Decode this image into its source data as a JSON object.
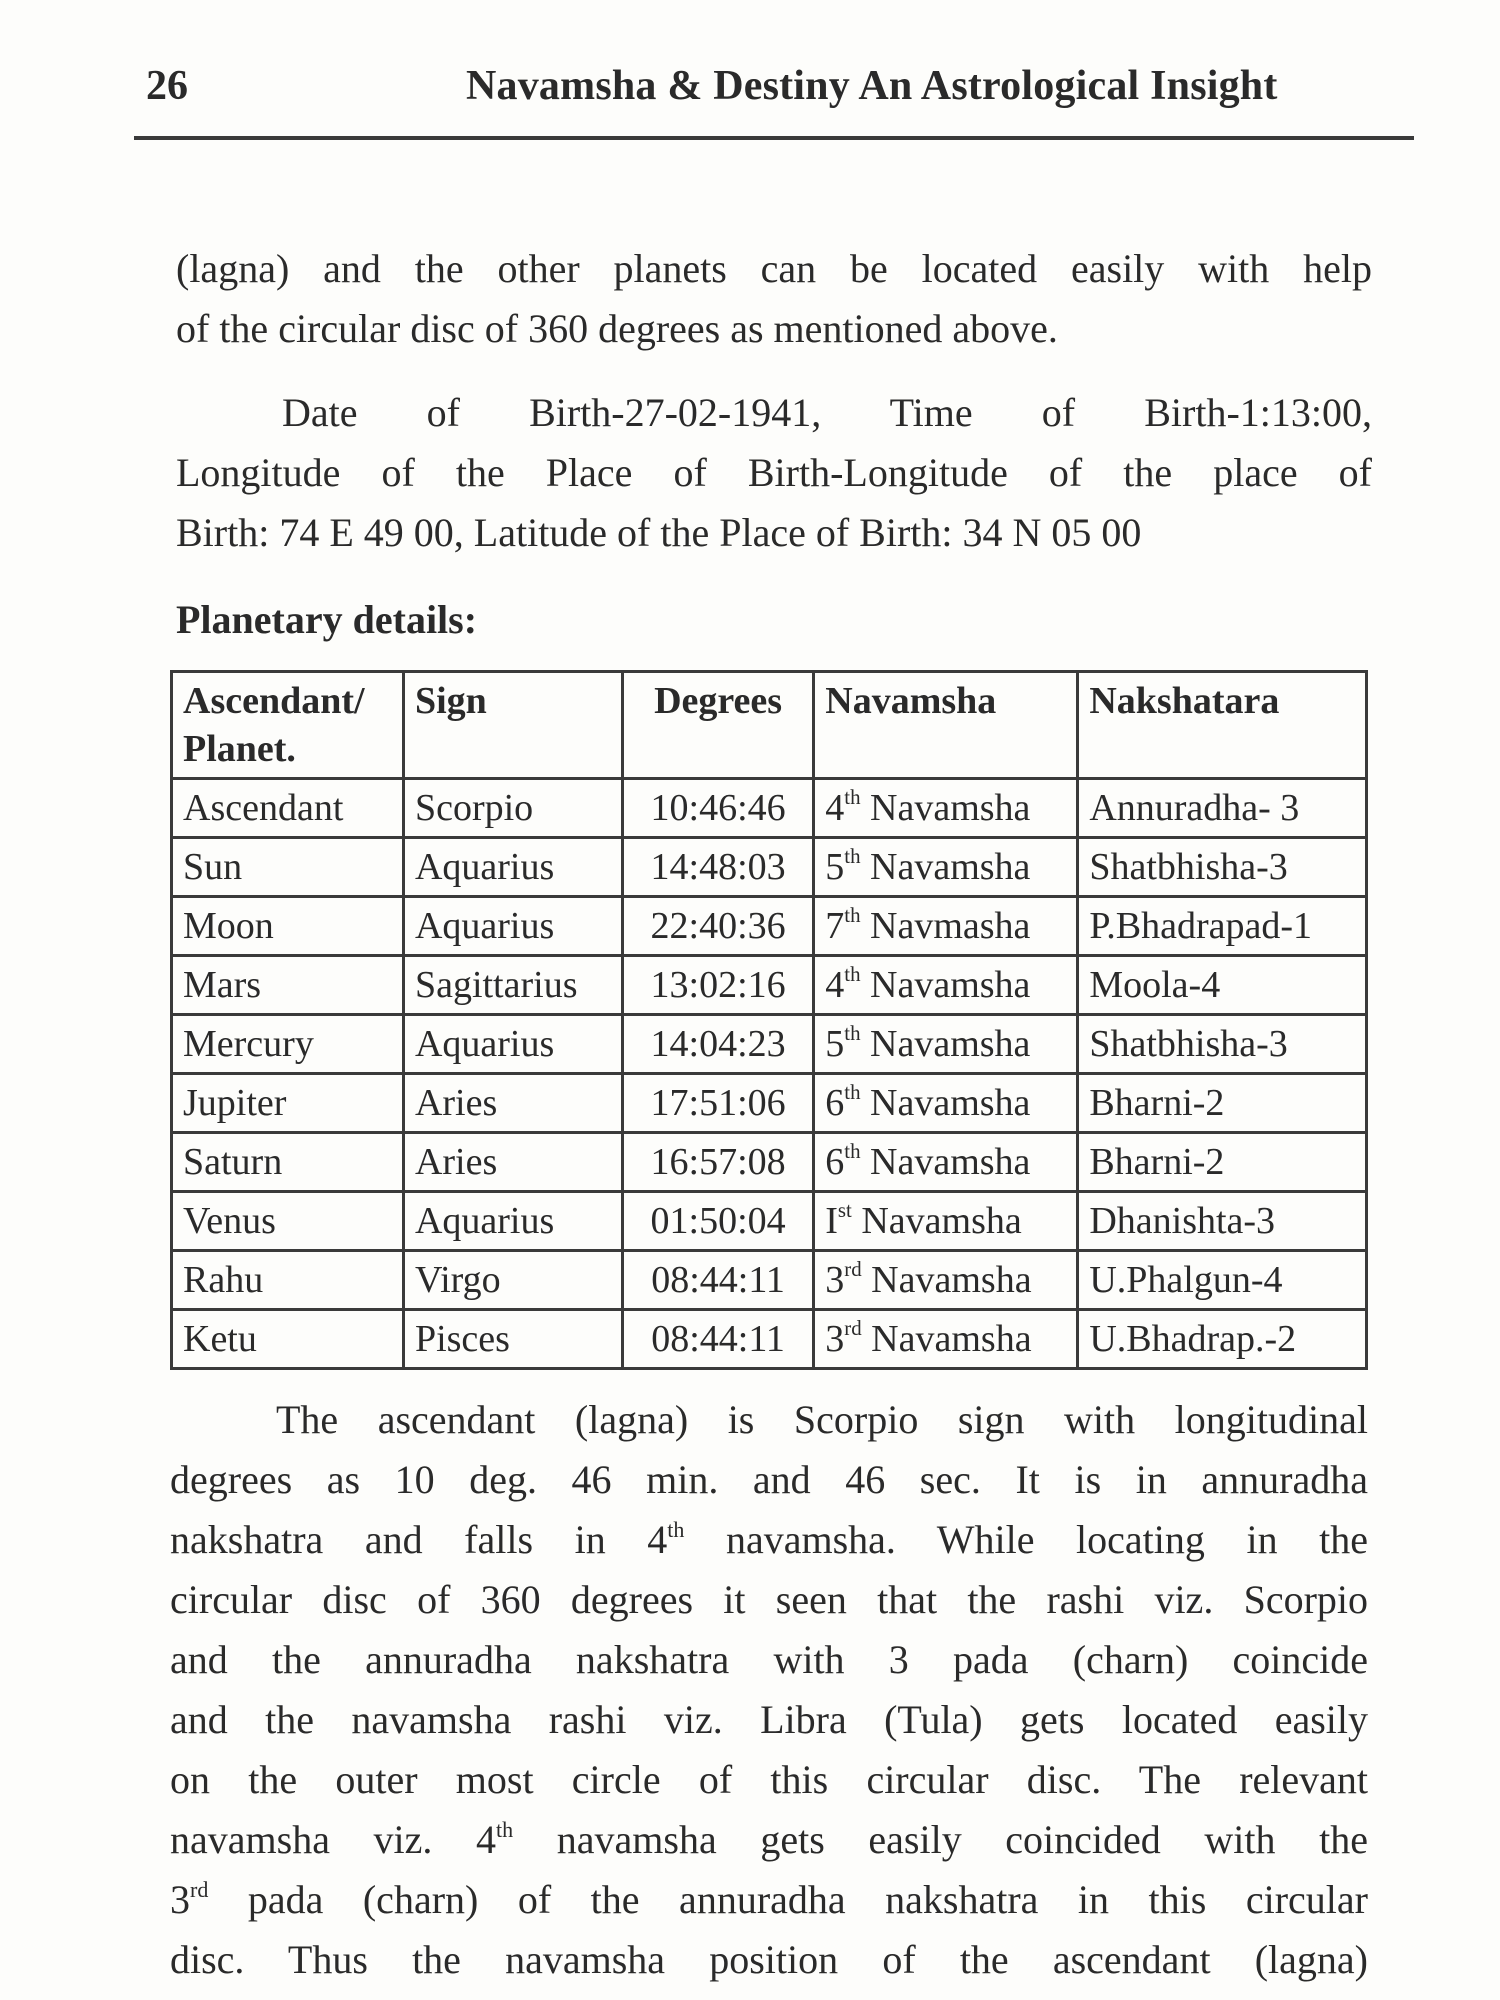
{
  "header": {
    "page_number": "26",
    "running_title": "Navamsha & Destiny An Astrological Insight"
  },
  "para1": [
    "(lagna) and the other planets can be located easily with help",
    "of the circular disc of 360 degrees as mentioned above."
  ],
  "para2": [
    "Date of Birth-27-02-1941, Time of Birth-1:13:00,",
    "Longitude of the Place of Birth-Longitude of the place of",
    "Birth: 74 E 49 00, Latitude of the Place of Birth: 34 N 05 00"
  ],
  "heading": "Planetary details:",
  "table": {
    "headers": [
      "Ascendant/ Planet.",
      "Sign",
      "Degrees",
      "Navamsha",
      "Nakshatara"
    ],
    "rows": [
      [
        "Ascendant",
        "Scorpio",
        "10:46:46",
        "4^{th} Navamsha",
        "Annuradha- 3"
      ],
      [
        "Sun",
        "Aquarius",
        "14:48:03",
        "5^{th} Navamsha",
        "Shatbhisha-3"
      ],
      [
        "Moon",
        "Aquarius",
        "22:40:36",
        "7^{th} Navmasha",
        "P.Bhadrapad-1"
      ],
      [
        "Mars",
        "Sagittarius",
        "13:02:16",
        "4^{th} Navamsha",
        "Moola-4"
      ],
      [
        "Mercury",
        "Aquarius",
        "14:04:23",
        "5^{th} Navamsha",
        "Shatbhisha-3"
      ],
      [
        "Jupiter",
        "Aries",
        "17:51:06",
        "6^{th} Navamsha",
        "Bharni-2"
      ],
      [
        "Saturn",
        "Aries",
        "16:57:08",
        "6^{th} Navamsha",
        "Bharni-2"
      ],
      [
        "Venus",
        "Aquarius",
        "01:50:04",
        "I^{st} Navamsha",
        "Dhanishta-3"
      ],
      [
        "Rahu",
        "Virgo",
        "08:44:11",
        "3^{rd} Navamsha",
        "U.Phalgun-4"
      ],
      [
        "Ketu",
        "Pisces",
        "08:44:11",
        "3^{rd} Navamsha",
        "U.Bhadrap.-2"
      ]
    ]
  },
  "para3": [
    "The ascendant (lagna) is Scorpio sign with longitudinal",
    "degrees as 10 deg. 46 min. and 46 sec. It is in annuradha",
    "nakshatra and falls in 4^{th} navamsha. While locating in the",
    "circular disc of 360 degrees it seen that the rashi viz. Scorpio",
    "and the annuradha nakshatra with 3 pada (charn) coincide",
    "and the navamsha rashi viz. Libra (Tula) gets located easily",
    "on the outer most circle of this circular disc. The relevant",
    "navamsha viz. 4^{th} navamsha gets easily coincided with the",
    "3^{rd} pada (charn) of the annuradha nakshatra in this circular",
    "disc. Thus the navamsha position of the ascendant (lagna)"
  ]
}
